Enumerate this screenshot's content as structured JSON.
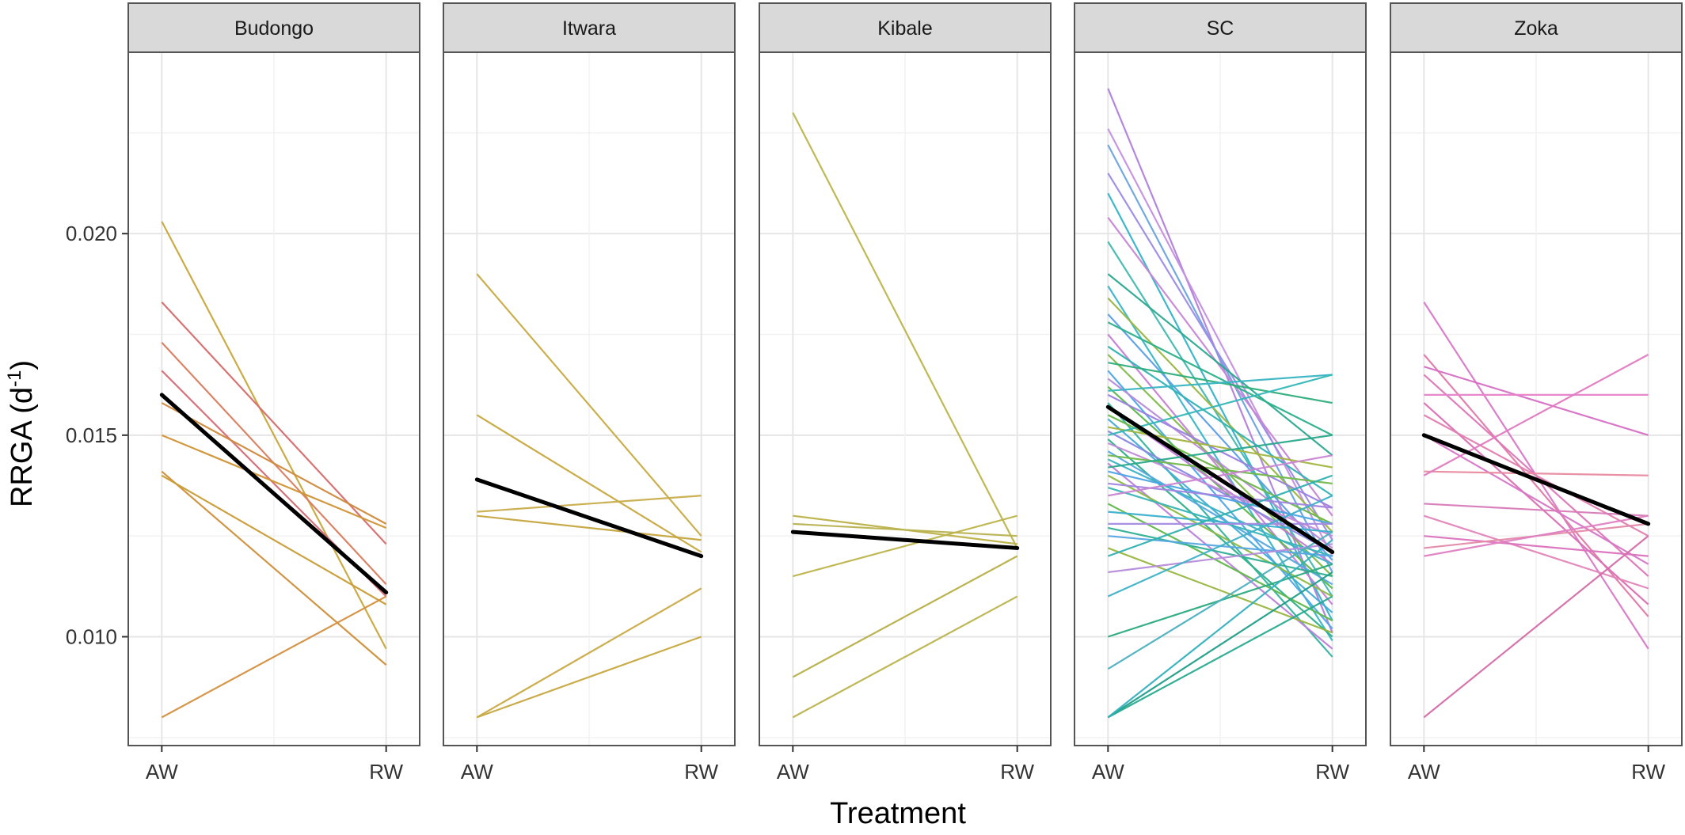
{
  "chart_data": {
    "type": "line",
    "ylabel_base": "RRGA (d",
    "ylabel_sup": "-1",
    "ylabel_close": ")",
    "xlabel": "Treatment",
    "categories": [
      "AW",
      "RW"
    ],
    "ylim": [
      0.0073,
      0.0245
    ],
    "yticks": [
      0.01,
      0.015,
      0.02
    ],
    "ytick_labels": [
      "0.010",
      "0.015",
      "0.020"
    ],
    "legend": "none",
    "grid": true,
    "mean_color": "#000000",
    "panels": [
      {
        "name": "Budongo",
        "mean": [
          0.016,
          0.0111
        ],
        "individuals": [
          {
            "v": [
              0.0203,
              0.0097
            ],
            "color": "#c8a63a"
          },
          {
            "v": [
              0.0183,
              0.0123
            ],
            "color": "#d56b6b"
          },
          {
            "v": [
              0.0173,
              0.0113
            ],
            "color": "#d87c5e"
          },
          {
            "v": [
              0.0166,
              0.011
            ],
            "color": "#d46a73"
          },
          {
            "v": [
              0.0158,
              0.0128
            ],
            "color": "#cf8a3c"
          },
          {
            "v": [
              0.015,
              0.0127
            ],
            "color": "#d09335"
          },
          {
            "v": [
              0.0141,
              0.0093
            ],
            "color": "#cd8f38"
          },
          {
            "v": [
              0.014,
              0.0108
            ],
            "color": "#c99c35"
          },
          {
            "v": [
              0.008,
              0.011
            ],
            "color": "#d49040"
          }
        ]
      },
      {
        "name": "Itwara",
        "mean": [
          0.0139,
          0.012
        ],
        "individuals": [
          {
            "v": [
              0.019,
              0.0125
            ],
            "color": "#c8ab43"
          },
          {
            "v": [
              0.0155,
              0.0121
            ],
            "color": "#c7a83e"
          },
          {
            "v": [
              0.0131,
              0.0135
            ],
            "color": "#c8ad4a"
          },
          {
            "v": [
              0.013,
              0.0124
            ],
            "color": "#c6a53f"
          },
          {
            "v": [
              0.008,
              0.0112
            ],
            "color": "#c9aa45"
          },
          {
            "v": [
              0.008,
              0.01
            ],
            "color": "#c7a840"
          }
        ]
      },
      {
        "name": "Kibale",
        "mean": [
          0.0126,
          0.0122
        ],
        "individuals": [
          {
            "v": [
              0.023,
              0.0122
            ],
            "color": "#bab54a"
          },
          {
            "v": [
              0.013,
              0.0123
            ],
            "color": "#bcb147"
          },
          {
            "v": [
              0.0128,
              0.0125
            ],
            "color": "#b8b250"
          },
          {
            "v": [
              0.0115,
              0.013
            ],
            "color": "#bdb44b"
          },
          {
            "v": [
              0.009,
              0.012
            ],
            "color": "#b6af46"
          },
          {
            "v": [
              0.008,
              0.011
            ],
            "color": "#bab34c"
          }
        ]
      },
      {
        "name": "SC",
        "mean": [
          0.0157,
          0.0121
        ],
        "individuals": [
          {
            "v": [
              0.0236,
              0.0101
            ],
            "color": "#b07fdc"
          },
          {
            "v": [
              0.0226,
              0.012
            ],
            "color": "#c490e0"
          },
          {
            "v": [
              0.0222,
              0.0116
            ],
            "color": "#6aa3e0"
          },
          {
            "v": [
              0.0215,
              0.0124
            ],
            "color": "#9b8be6"
          },
          {
            "v": [
              0.021,
              0.0104
            ],
            "color": "#33b3c9"
          },
          {
            "v": [
              0.0204,
              0.013
            ],
            "color": "#c686d4"
          },
          {
            "v": [
              0.0198,
              0.011
            ],
            "color": "#42b8b0"
          },
          {
            "v": [
              0.019,
              0.0145
            ],
            "color": "#2aa88f"
          },
          {
            "v": [
              0.0187,
              0.0099
            ],
            "color": "#38b6c6"
          },
          {
            "v": [
              0.0184,
              0.0126
            ],
            "color": "#9ab642"
          },
          {
            "v": [
              0.018,
              0.0119
            ],
            "color": "#5a9fe6"
          },
          {
            "v": [
              0.0178,
              0.015
            ],
            "color": "#2cb08a"
          },
          {
            "v": [
              0.0175,
              0.0108
            ],
            "color": "#c57fd5"
          },
          {
            "v": [
              0.0172,
              0.0135
            ],
            "color": "#30b3b4"
          },
          {
            "v": [
              0.017,
              0.0115
            ],
            "color": "#82b94a"
          },
          {
            "v": [
              0.0168,
              0.0158
            ],
            "color": "#2fae7c"
          },
          {
            "v": [
              0.0166,
              0.0102
            ],
            "color": "#4fa6e8"
          },
          {
            "v": [
              0.0164,
              0.0122
            ],
            "color": "#b98ad9"
          },
          {
            "v": [
              0.0162,
              0.0112
            ],
            "color": "#5db74a"
          },
          {
            "v": [
              0.0161,
              0.0165
            ],
            "color": "#3ab5c3"
          },
          {
            "v": [
              0.016,
              0.0132
            ],
            "color": "#9a80e1"
          },
          {
            "v": [
              0.0158,
              0.0095
            ],
            "color": "#36b2a0"
          },
          {
            "v": [
              0.0157,
              0.0118
            ],
            "color": "#c27ad6"
          },
          {
            "v": [
              0.0155,
              0.0128
            ],
            "color": "#6ab848"
          },
          {
            "v": [
              0.0154,
              0.0106
            ],
            "color": "#42acd8"
          },
          {
            "v": [
              0.0152,
              0.0142
            ],
            "color": "#a3b43f"
          },
          {
            "v": [
              0.0151,
              0.0121
            ],
            "color": "#8888e2"
          },
          {
            "v": [
              0.015,
              0.0165
            ],
            "color": "#35b7b8"
          },
          {
            "v": [
              0.0149,
              0.01
            ],
            "color": "#2db089"
          },
          {
            "v": [
              0.0148,
              0.0125
            ],
            "color": "#c48ad8"
          },
          {
            "v": [
              0.0146,
              0.0113
            ],
            "color": "#56a8e4"
          },
          {
            "v": [
              0.0145,
              0.0138
            ],
            "color": "#71b84a"
          },
          {
            "v": [
              0.0144,
              0.0118
            ],
            "color": "#3db3c5"
          },
          {
            "v": [
              0.0143,
              0.0097
            ],
            "color": "#b982d9"
          },
          {
            "v": [
              0.0142,
              0.015
            ],
            "color": "#2aa98d"
          },
          {
            "v": [
              0.0141,
              0.0128
            ],
            "color": "#4ea4e5"
          },
          {
            "v": [
              0.014,
              0.011
            ],
            "color": "#8db944"
          },
          {
            "v": [
              0.0138,
              0.0132
            ],
            "color": "#a184df"
          },
          {
            "v": [
              0.0137,
              0.012
            ],
            "color": "#39b4b7"
          },
          {
            "v": [
              0.0135,
              0.0145
            ],
            "color": "#c985d2"
          },
          {
            "v": [
              0.0133,
              0.0104
            ],
            "color": "#5fb749"
          },
          {
            "v": [
              0.0131,
              0.0126
            ],
            "color": "#3ab0cf"
          },
          {
            "v": [
              0.0128,
              0.0128
            ],
            "color": "#a48ae0"
          },
          {
            "v": [
              0.0127,
              0.0115
            ],
            "color": "#30af95"
          },
          {
            "v": [
              0.0125,
              0.012
            ],
            "color": "#57a7e3"
          },
          {
            "v": [
              0.0122,
              0.0101
            ],
            "color": "#98b641"
          },
          {
            "v": [
              0.012,
              0.014
            ],
            "color": "#2fb1b0"
          },
          {
            "v": [
              0.0116,
              0.0123
            ],
            "color": "#b58cdc"
          },
          {
            "v": [
              0.011,
              0.0135
            ],
            "color": "#3fb1c8"
          },
          {
            "v": [
              0.01,
              0.0118
            ],
            "color": "#2baa7e"
          },
          {
            "v": [
              0.0092,
              0.0126
            ],
            "color": "#4eb0c0"
          },
          {
            "v": [
              0.008,
              0.0116
            ],
            "color": "#1f9e89"
          },
          {
            "v": [
              0.008,
              0.011
            ],
            "color": "#27ab8f"
          },
          {
            "v": [
              0.008,
              0.0124
            ],
            "color": "#35b0c0"
          }
        ]
      },
      {
        "name": "Zoka",
        "mean": [
          0.015,
          0.0128
        ],
        "individuals": [
          {
            "v": [
              0.0183,
              0.0097
            ],
            "color": "#d978c8"
          },
          {
            "v": [
              0.017,
              0.0105
            ],
            "color": "#e07aa8"
          },
          {
            "v": [
              0.0167,
              0.015
            ],
            "color": "#d56fc5"
          },
          {
            "v": [
              0.0165,
              0.0115
            ],
            "color": "#dc77b7"
          },
          {
            "v": [
              0.016,
              0.016
            ],
            "color": "#e681c9"
          },
          {
            "v": [
              0.0158,
              0.0108
            ],
            "color": "#d970b3"
          },
          {
            "v": [
              0.0155,
              0.0125
            ],
            "color": "#e27fb0"
          },
          {
            "v": [
              0.015,
              0.0118
            ],
            "color": "#d676c7"
          },
          {
            "v": [
              0.0141,
              0.014
            ],
            "color": "#e88aa0"
          },
          {
            "v": [
              0.014,
              0.017
            ],
            "color": "#e07ac0"
          },
          {
            "v": [
              0.0133,
              0.013
            ],
            "color": "#d77ab8"
          },
          {
            "v": [
              0.013,
              0.0112
            ],
            "color": "#e185b8"
          },
          {
            "v": [
              0.0125,
              0.012
            ],
            "color": "#db72bd"
          },
          {
            "v": [
              0.0122,
              0.0128
            ],
            "color": "#e48aa8"
          },
          {
            "v": [
              0.012,
              0.013
            ],
            "color": "#de7fc2"
          },
          {
            "v": [
              0.008,
              0.0125
            ],
            "color": "#d46ea8"
          }
        ]
      }
    ]
  }
}
